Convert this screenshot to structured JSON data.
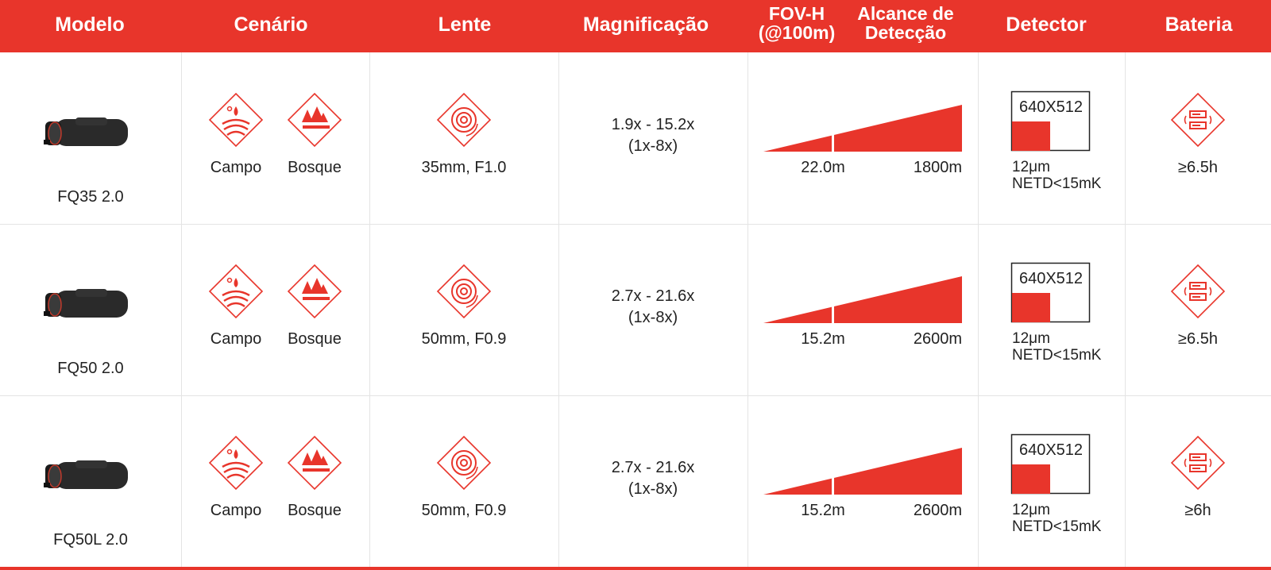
{
  "header": {
    "columns": [
      {
        "lines": [
          "Modelo"
        ]
      },
      {
        "lines": [
          "Cenário"
        ]
      },
      {
        "lines": [
          "Lente"
        ]
      },
      {
        "lines": [
          "Magnificação"
        ]
      },
      {
        "lines": [
          "FOV-H",
          "(@100m)"
        ]
      },
      {
        "lines": [
          "Alcance de",
          "Detecção"
        ]
      },
      {
        "lines": [
          "Detector"
        ]
      },
      {
        "lines": [
          "Bateria"
        ]
      }
    ]
  },
  "rows": [
    {
      "model": "FQ35 2.0",
      "scenarios": [
        "Campo",
        "Bosque"
      ],
      "lens": "35mm, F1.0",
      "magnification": [
        "1.9x - 15.2x",
        "(1x-8x)"
      ],
      "fov": "22.0m",
      "range": "1800m",
      "resolution": "640X512",
      "pixel": "12μm",
      "netd": "NETD<15mK",
      "battery": "≥6.5h"
    },
    {
      "model": "FQ50 2.0",
      "scenarios": [
        "Campo",
        "Bosque"
      ],
      "lens": "50mm, F0.9",
      "magnification": [
        "2.7x - 21.6x",
        "(1x-8x)"
      ],
      "fov": "15.2m",
      "range": "2600m",
      "resolution": "640X512",
      "pixel": "12μm",
      "netd": "NETD<15mK",
      "battery": "≥6.5h"
    },
    {
      "model": "FQ50L 2.0",
      "scenarios": [
        "Campo",
        "Bosque"
      ],
      "lens": "50mm, F0.9",
      "magnification": [
        "2.7x - 21.6x",
        "(1x-8x)"
      ],
      "fov": "15.2m",
      "range": "2600m",
      "resolution": "640X512",
      "pixel": "12μm",
      "netd": "NETD<15mK",
      "battery": "≥6h"
    }
  ]
}
